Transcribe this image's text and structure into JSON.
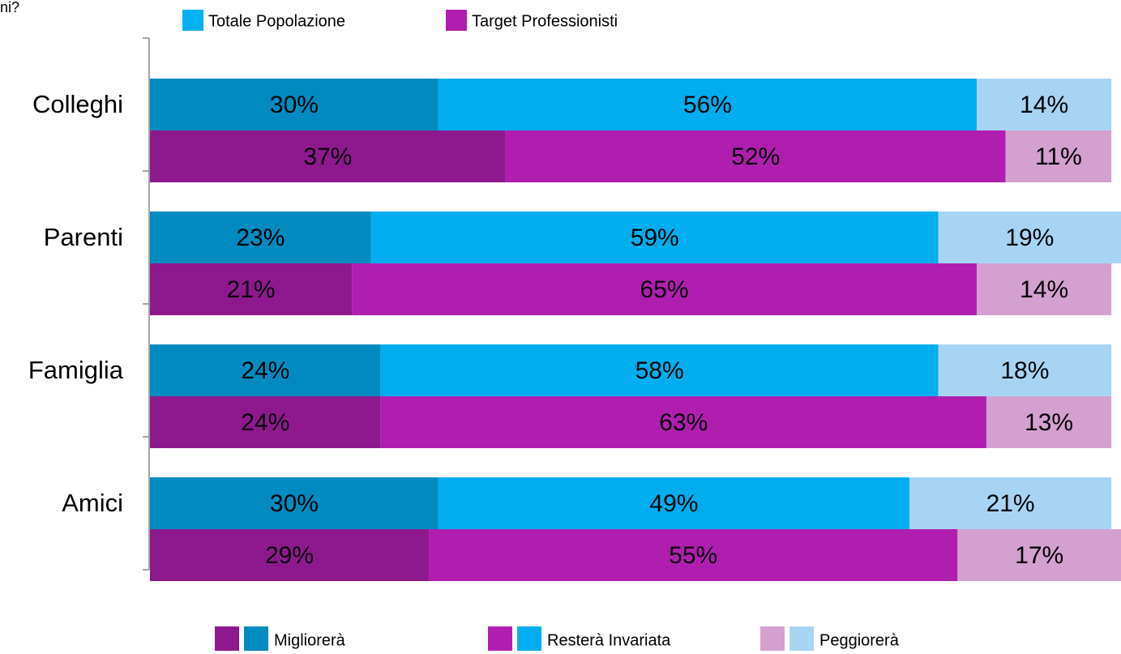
{
  "chart_data": {
    "type": "stacked_grouped_barh",
    "corner_text": "ni?",
    "categories": [
      "Colleghi",
      "Parenti",
      "Famiglia",
      "Amici"
    ],
    "segment_names": [
      "Migliorerà",
      "Resterà Invariata",
      "Peggiorerà"
    ],
    "xlim": [
      0,
      101
    ],
    "groups": [
      {
        "name": "Totale Popolazione",
        "color": "#00b0f0",
        "series": [
          {
            "color": "#008bc0",
            "values": [
              30,
              23,
              24,
              30
            ],
            "value_labels": [
              "30%",
              "23%",
              "24%",
              "30%"
            ]
          },
          {
            "color": "#00aeef",
            "values": [
              56,
              59,
              58,
              49
            ],
            "value_labels": [
              "56%",
              "59%",
              "58%",
              "49%"
            ]
          },
          {
            "color": "#a8d4f4",
            "values": [
              14,
              19,
              18,
              21
            ],
            "value_labels": [
              "14%",
              "19%",
              "18%",
              "21%"
            ]
          }
        ]
      },
      {
        "name": "Target Professionisti",
        "color": "#b01eb0",
        "series": [
          {
            "color": "#8e198e",
            "values": [
              37,
              21,
              24,
              29
            ],
            "value_labels": [
              "37%",
              "21%",
              "24%",
              "29%"
            ]
          },
          {
            "color": "#b01eb0",
            "values": [
              52,
              65,
              63,
              55
            ],
            "value_labels": [
              "52%",
              "65%",
              "63%",
              "55%"
            ]
          },
          {
            "color": "#d4a0d0",
            "values": [
              11,
              14,
              13,
              17
            ],
            "value_labels": [
              "11%",
              "14%",
              "13%",
              "17%"
            ]
          }
        ]
      }
    ]
  }
}
